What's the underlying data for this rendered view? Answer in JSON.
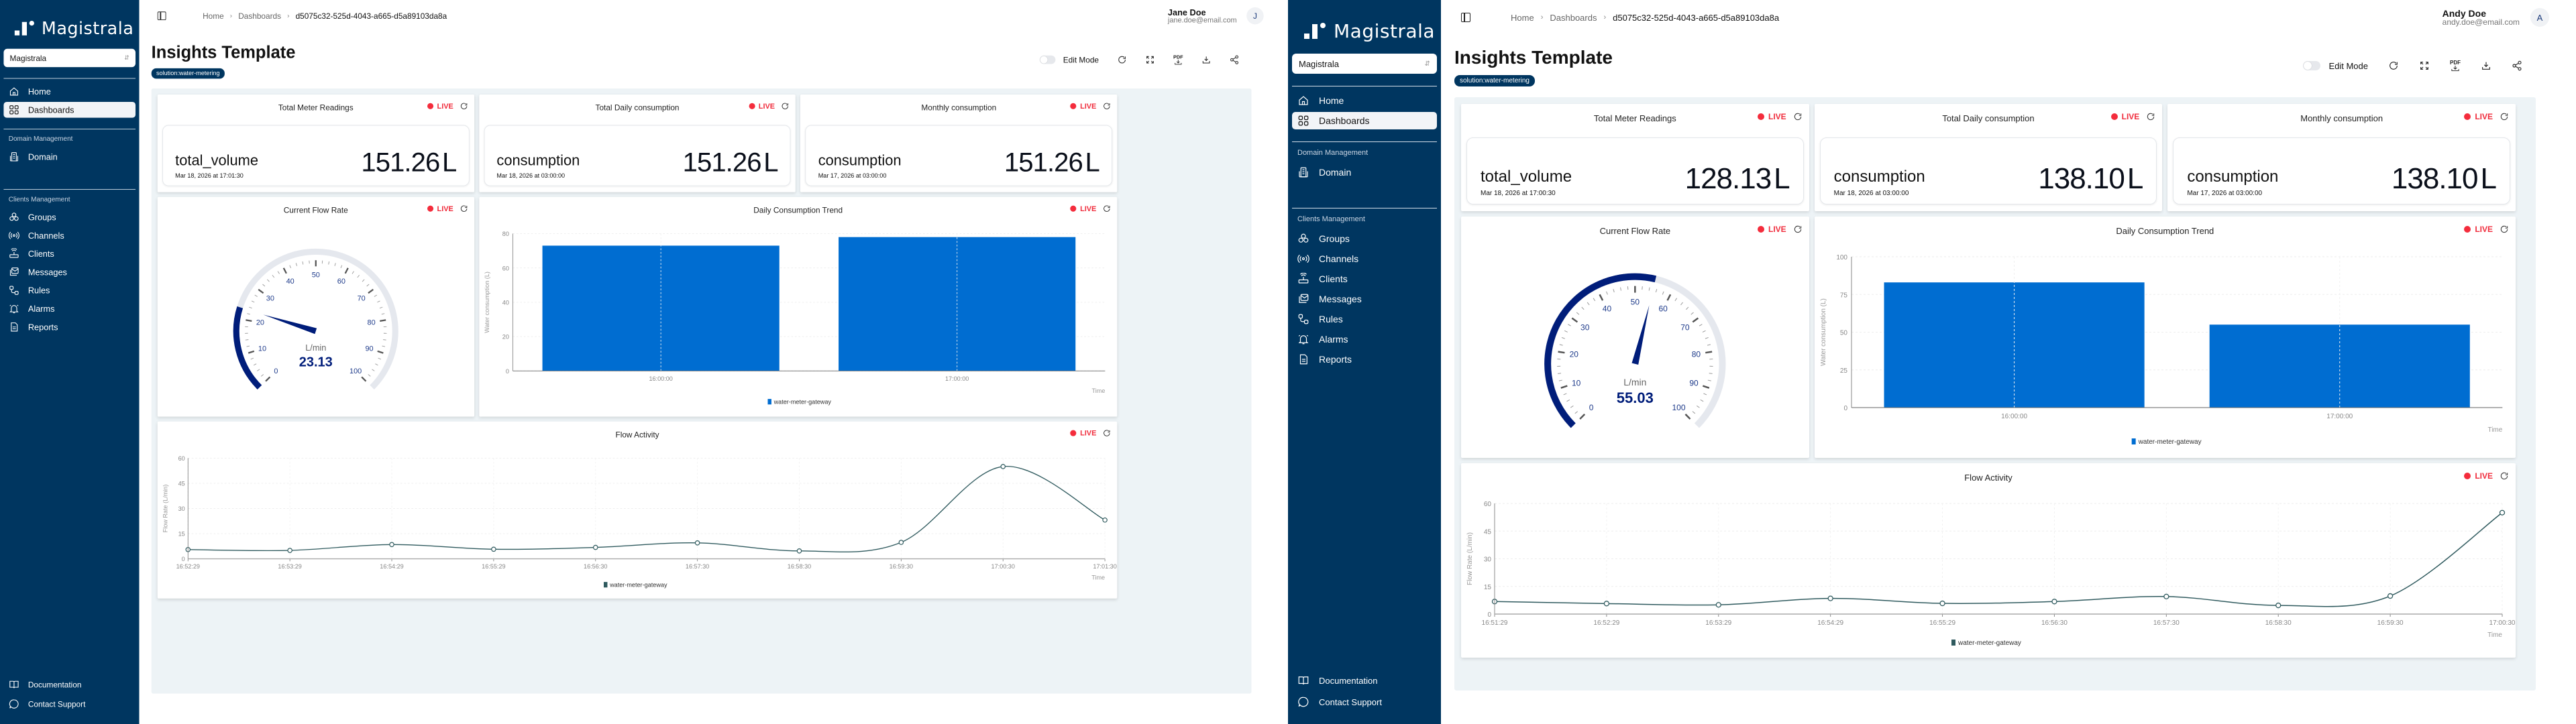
{
  "screens": [
    {
      "sidebar": {
        "brand": "Magistrala",
        "domain_selector": "Magistrala",
        "items_top": [
          {
            "label": "Home",
            "icon": "home-icon"
          },
          {
            "label": "Dashboards",
            "icon": "dashboard-icon",
            "active": true
          }
        ],
        "group_domain": "Domain Management",
        "items_domain": [
          {
            "label": "Domain",
            "icon": "building-icon"
          }
        ],
        "group_clients": "Clients Management",
        "items_clients": [
          {
            "label": "Groups",
            "icon": "groups-icon"
          },
          {
            "label": "Channels",
            "icon": "broadcast-icon"
          },
          {
            "label": "Clients",
            "icon": "router-icon"
          },
          {
            "label": "Messages",
            "icon": "mail-icon"
          },
          {
            "label": "Rules",
            "icon": "rules-icon"
          },
          {
            "label": "Alarms",
            "icon": "bell-icon"
          },
          {
            "label": "Reports",
            "icon": "report-icon"
          }
        ],
        "footer": [
          {
            "label": "Documentation",
            "icon": "book-icon"
          },
          {
            "label": "Contact Support",
            "icon": "chat-icon"
          }
        ]
      },
      "header": {
        "breadcrumb": [
          "Home",
          "Dashboards",
          "d5075c32-525d-4043-a665-d5a89103da8a"
        ],
        "user_name": "Jane Doe",
        "user_email": "jane.doe@email.com",
        "avatar_initial": "J"
      },
      "page": {
        "title": "Insights Template",
        "tag": "solution:water-metering",
        "edit_mode_label": "Edit Mode",
        "edit_mode_on": false,
        "pdf_label": "PDF"
      },
      "widgets": {
        "live_label": "LIVE",
        "stats": [
          {
            "title": "Total Meter Readings",
            "label": "total_volume",
            "date": "Mar 18, 2026 at 17:01:30",
            "value": "151.26",
            "unit": "L"
          },
          {
            "title": "Total Daily consumption",
            "label": "consumption",
            "date": "Mar 18, 2026 at 03:00:00",
            "value": "151.26",
            "unit": "L"
          },
          {
            "title": "Monthly consumption",
            "label": "consumption",
            "date": "Mar 17, 2026 at 03:00:00",
            "value": "151.26",
            "unit": "L"
          }
        ],
        "gauge": {
          "title": "Current Flow Rate",
          "unit": "L/min",
          "value": "23.13",
          "min": 0,
          "max": 100
        },
        "bar": {
          "title": "Daily Consumption Trend",
          "ylabel": "Water consumption (L)",
          "xlabel": "Time",
          "legend": "water-meter-gateway"
        },
        "line": {
          "title": "Flow Activity",
          "ylabel": "Flow Rate (L/min)",
          "xlabel": "Time",
          "legend": "water-meter-gateway"
        }
      }
    },
    {
      "sidebar": {
        "brand": "Magistrala",
        "domain_selector": "Magistrala",
        "items_top": [
          {
            "label": "Home",
            "icon": "home-icon"
          },
          {
            "label": "Dashboards",
            "icon": "dashboard-icon",
            "active": true
          }
        ],
        "group_domain": "Domain Management",
        "items_domain": [
          {
            "label": "Domain",
            "icon": "building-icon"
          }
        ],
        "group_clients": "Clients Management",
        "items_clients": [
          {
            "label": "Groups",
            "icon": "groups-icon"
          },
          {
            "label": "Channels",
            "icon": "broadcast-icon"
          },
          {
            "label": "Clients",
            "icon": "router-icon"
          },
          {
            "label": "Messages",
            "icon": "mail-icon"
          },
          {
            "label": "Rules",
            "icon": "rules-icon"
          },
          {
            "label": "Alarms",
            "icon": "bell-icon"
          },
          {
            "label": "Reports",
            "icon": "report-icon"
          }
        ],
        "footer": [
          {
            "label": "Documentation",
            "icon": "book-icon"
          },
          {
            "label": "Contact Support",
            "icon": "chat-icon"
          }
        ]
      },
      "header": {
        "breadcrumb": [
          "Home",
          "Dashboards",
          "d5075c32-525d-4043-a665-d5a89103da8a"
        ],
        "user_name": "Andy Doe",
        "user_email": "andy.doe@email.com",
        "avatar_initial": "A"
      },
      "page": {
        "title": "Insights Template",
        "tag": "solution:water-metering",
        "edit_mode_label": "Edit Mode",
        "edit_mode_on": false,
        "pdf_label": "PDF"
      },
      "widgets": {
        "live_label": "LIVE",
        "stats": [
          {
            "title": "Total Meter Readings",
            "label": "total_volume",
            "date": "Mar 18, 2026 at 17:00:30",
            "value": "128.13",
            "unit": "L"
          },
          {
            "title": "Total Daily consumption",
            "label": "consumption",
            "date": "Mar 18, 2026 at 03:00:00",
            "value": "138.10",
            "unit": "L"
          },
          {
            "title": "Monthly consumption",
            "label": "consumption",
            "date": "Mar 17, 2026 at 03:00:00",
            "value": "138.10",
            "unit": "L"
          }
        ],
        "gauge": {
          "title": "Current Flow Rate",
          "unit": "L/min",
          "value": "55.03",
          "min": 0,
          "max": 100
        },
        "bar": {
          "title": "Daily Consumption Trend",
          "ylabel": "Water consumption (L)",
          "xlabel": "Time",
          "legend": "water-meter-gateway"
        },
        "line": {
          "title": "Flow Activity",
          "ylabel": "Flow Rate (L/min)",
          "xlabel": "Time",
          "legend": "water-meter-gateway"
        }
      }
    }
  ],
  "colors": {
    "sidebar_bg": "#003660",
    "live_red": "#f42c3c",
    "bar_blue": "#006dd1",
    "gauge_navy": "#001d7a",
    "line_teal": "#2f5a5e",
    "canvas_bg": "#edf3f6"
  },
  "chart_data": [
    {
      "screen": 1,
      "type": "gauge",
      "title": "Current Flow Rate",
      "unit": "L/min",
      "value": 23.13,
      "range": [
        0,
        100
      ],
      "ticks": [
        0,
        10,
        20,
        30,
        40,
        50,
        60,
        70,
        80,
        90,
        100
      ]
    },
    {
      "screen": 1,
      "type": "bar",
      "title": "Daily Consumption Trend",
      "categories": [
        "16:00:00",
        "17:00:00"
      ],
      "series": [
        {
          "name": "water-meter-gateway",
          "values": [
            73,
            78
          ]
        }
      ],
      "xlabel": "Time",
      "ylabel": "Water consumption (L)",
      "ylim": [
        0,
        80
      ],
      "yticks": [
        0,
        20,
        40,
        60,
        80
      ],
      "grid": true,
      "legend_position": "bottom"
    },
    {
      "screen": 1,
      "type": "line",
      "title": "Flow Activity",
      "x": [
        "16:52:29",
        "16:53:29",
        "16:54:29",
        "16:55:29",
        "16:56:30",
        "16:57:30",
        "16:58:30",
        "16:59:30",
        "17:00:30",
        "17:01:30"
      ],
      "series": [
        {
          "name": "water-meter-gateway",
          "values": [
            5.5,
            5,
            8.5,
            5.7,
            6.8,
            9.5,
            4.7,
            9.8,
            55,
            23.1
          ]
        }
      ],
      "xlabel": "Time",
      "ylabel": "Flow Rate (L/min)",
      "ylim": [
        0,
        60
      ],
      "yticks": [
        0,
        15,
        30,
        45,
        60
      ],
      "grid": true,
      "legend_position": "bottom"
    },
    {
      "screen": 2,
      "type": "gauge",
      "title": "Current Flow Rate",
      "unit": "L/min",
      "value": 55.03,
      "range": [
        0,
        100
      ],
      "ticks": [
        0,
        10,
        20,
        30,
        40,
        50,
        60,
        70,
        80,
        90,
        100
      ]
    },
    {
      "screen": 2,
      "type": "bar",
      "title": "Daily Consumption Trend",
      "categories": [
        "16:00:00",
        "17:00:00"
      ],
      "series": [
        {
          "name": "water-meter-gateway",
          "values": [
            83,
            55
          ]
        }
      ],
      "xlabel": "Time",
      "ylabel": "Water consumption (L)",
      "ylim": [
        0,
        100
      ],
      "yticks": [
        0,
        25,
        50,
        75,
        100
      ],
      "grid": true,
      "legend_position": "bottom"
    },
    {
      "screen": 2,
      "type": "line",
      "title": "Flow Activity",
      "x": [
        "16:51:29",
        "16:52:29",
        "16:53:29",
        "16:54:29",
        "16:55:29",
        "16:56:30",
        "16:57:30",
        "16:58:30",
        "16:59:30",
        "17:00:30"
      ],
      "series": [
        {
          "name": "water-meter-gateway",
          "values": [
            6.8,
            5.7,
            5,
            8.5,
            5.8,
            6.8,
            9.5,
            4.7,
            9.8,
            55
          ]
        }
      ],
      "xlabel": "Time",
      "ylabel": "Flow Rate (L/min)",
      "ylim": [
        0,
        60
      ],
      "yticks": [
        0,
        15,
        30,
        45,
        60
      ],
      "grid": true,
      "legend_position": "bottom"
    }
  ]
}
